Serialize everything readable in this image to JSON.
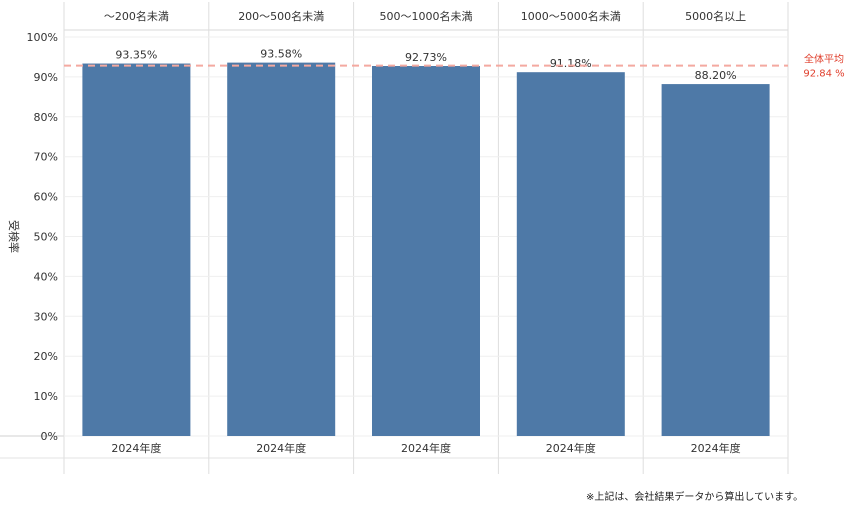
{
  "chart_data": {
    "type": "bar",
    "groups": [
      "〜200名未満",
      "200〜500名未満",
      "500〜1000名未満",
      "1000〜5000名未満",
      "5000名以上"
    ],
    "categories": [
      "2024年度",
      "2024年度",
      "2024年度",
      "2024年度",
      "2024年度"
    ],
    "values": [
      93.35,
      93.58,
      92.73,
      91.18,
      88.2
    ],
    "value_labels": [
      "93.35%",
      "93.58%",
      "92.73%",
      "91.18%",
      "88.20%"
    ],
    "ylabel": "受検率",
    "ylim": [
      0,
      100
    ],
    "yticks": [
      0,
      10,
      20,
      30,
      40,
      50,
      60,
      70,
      80,
      90,
      100
    ],
    "ytick_labels": [
      "0%",
      "10%",
      "20%",
      "30%",
      "40%",
      "50%",
      "60%",
      "70%",
      "80%",
      "90%",
      "100%"
    ],
    "reference_line": {
      "label": "全体平均",
      "value": 92.84,
      "value_label": "92.84 %",
      "color": "#f4a9a0"
    },
    "bar_color": "#4e79a7",
    "grid": true
  },
  "footnote": "※上記は、会社結果データから算出しています。"
}
